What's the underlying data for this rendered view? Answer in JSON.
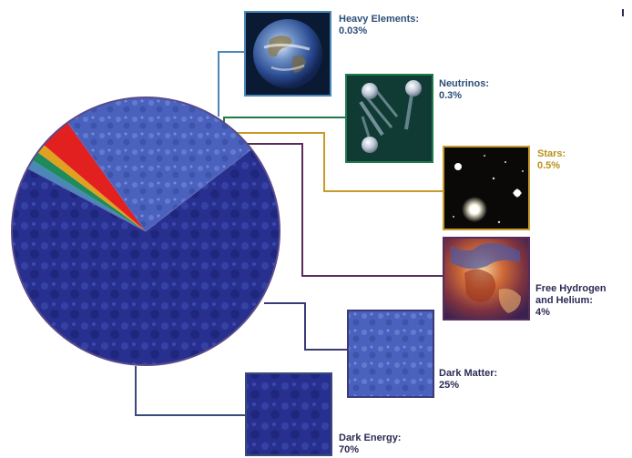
{
  "chart_data": {
    "type": "pie",
    "slices": [
      {
        "name": "Heavy Elements",
        "value": 0.03,
        "value_label": "0.03%",
        "color": "#4a88b8"
      },
      {
        "name": "Neutrinos",
        "value": 0.3,
        "value_label": "0.3%",
        "color": "#1f8a5a"
      },
      {
        "name": "Stars",
        "value": 0.5,
        "value_label": "0.5%",
        "color": "#e0a020"
      },
      {
        "name": "Free Hydrogen and Helium",
        "value": 4,
        "value_label": "4%",
        "color": "#e32020"
      },
      {
        "name": "Dark Matter",
        "value": 25,
        "value_label": "25%",
        "color": "#4560b8"
      },
      {
        "name": "Dark Energy",
        "value": 70,
        "value_label": "70%",
        "color": "#282f90"
      }
    ],
    "thumbnails": [
      "earth",
      "neutrino-tracks",
      "star-field",
      "nebula",
      "dark-matter-texture",
      "dark-energy-texture"
    ]
  },
  "labels": {
    "heavy": {
      "line1": "Heavy Elements:",
      "line2": "0.03%"
    },
    "neutrinos": {
      "line1": "Neutrinos:",
      "line2": "0.3%"
    },
    "stars": {
      "line1": "Stars:",
      "line2": "0.5%"
    },
    "free": {
      "line1": "Free Hydrogen",
      "line2": "and Helium:",
      "line3": "4%"
    },
    "dark_matter": {
      "line1": "Dark Matter:",
      "line2": "25%"
    },
    "dark_energy": {
      "line1": "Dark Energy:",
      "line2": "70%"
    }
  },
  "colors": {
    "heavy_line": "#4a88b8",
    "neutrino_line": "#1f7a4a",
    "stars_line": "#c89a2a",
    "free_line": "#5a2c5c",
    "dm_line": "#3a3a78",
    "de_line": "#3a4a7a",
    "label_blue": "#2c4f78",
    "label_stars": "#b8901a",
    "label_dark": "#2a2a55"
  }
}
